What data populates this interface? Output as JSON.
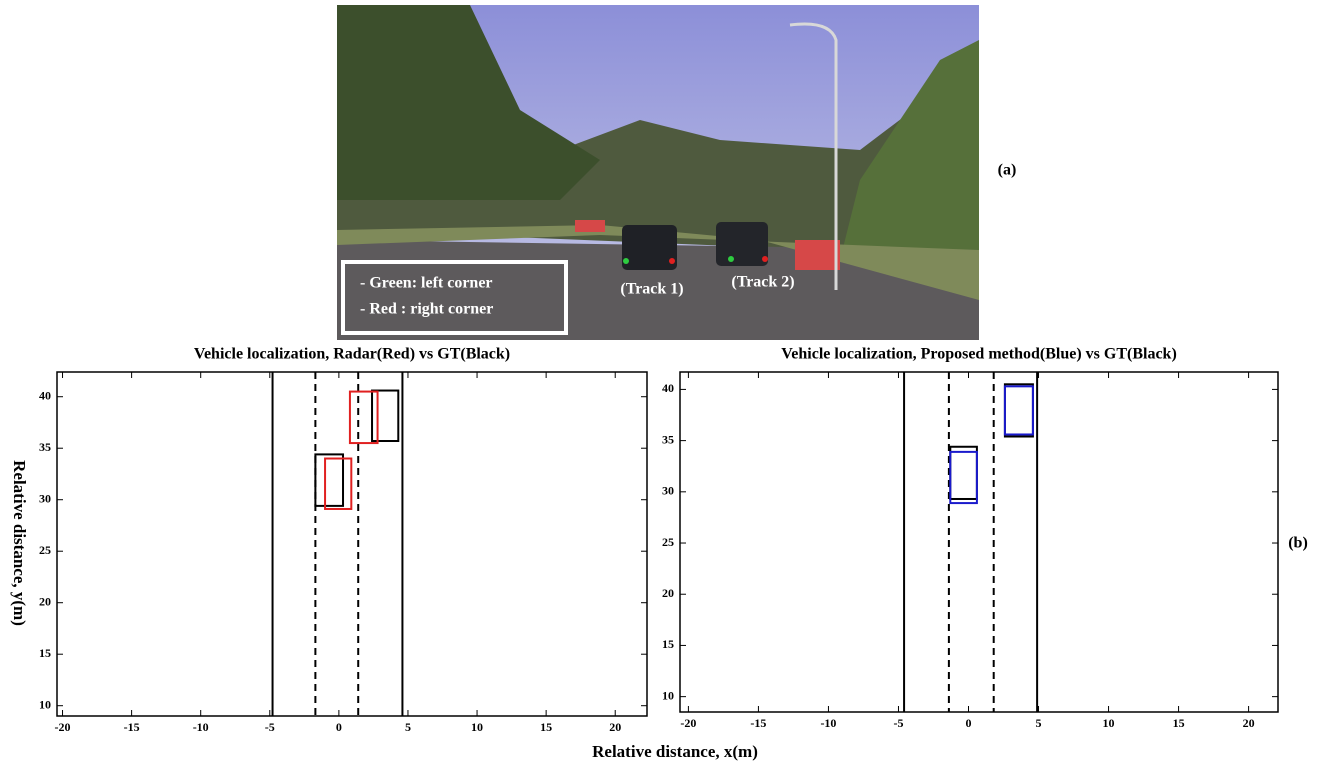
{
  "photo": {
    "legend": [
      "- Green: left corner",
      "- Red : right corner"
    ],
    "tracks": [
      "(Track 1)",
      "(Track 2)"
    ],
    "label": "(a)"
  },
  "panel_b_label": "(b)",
  "xlabel": "Relative distance, x(m)",
  "ylabel": "Relative distance, y(m)",
  "chart_data": [
    {
      "type": "rect",
      "title": "Vehicle localization, Radar(Red) vs GT(Black)",
      "xlim": [
        -20.4,
        22.3
      ],
      "ylim": [
        9,
        42.4
      ],
      "xticks": [
        -20,
        -15,
        -10,
        -5,
        0,
        5,
        10,
        15,
        20
      ],
      "yticks": [
        10,
        15,
        20,
        25,
        30,
        35,
        40
      ],
      "lane_lines": [
        {
          "x": -4.8,
          "dashed": false
        },
        {
          "x": -1.7,
          "dashed": true
        },
        {
          "x": 1.4,
          "dashed": true
        },
        {
          "x": 4.6,
          "dashed": false
        }
      ],
      "series": [
        {
          "color": "#000000",
          "boxes": [
            {
              "x": [
                -1.7,
                0.3
              ],
              "y": [
                29.4,
                34.4
              ]
            },
            {
              "x": [
                2.4,
                4.3
              ],
              "y": [
                35.7,
                40.6
              ]
            }
          ]
        },
        {
          "color": "#e02020",
          "boxes": [
            {
              "x": [
                -1.0,
                0.9
              ],
              "y": [
                29.1,
                34.0
              ]
            },
            {
              "x": [
                0.8,
                2.8
              ],
              "y": [
                35.5,
                40.5
              ]
            }
          ]
        }
      ]
    },
    {
      "type": "rect",
      "title": "Vehicle localization, Proposed method(Blue) vs GT(Black)",
      "xlim": [
        -20.6,
        22.1
      ],
      "ylim": [
        8.5,
        41.7
      ],
      "xticks": [
        -20,
        -15,
        -10,
        -5,
        0,
        5,
        10,
        15,
        20
      ],
      "yticks": [
        10,
        15,
        20,
        25,
        30,
        35,
        40
      ],
      "lane_lines": [
        {
          "x": -4.6,
          "dashed": false
        },
        {
          "x": -1.4,
          "dashed": true
        },
        {
          "x": 1.8,
          "dashed": true
        },
        {
          "x": 4.9,
          "dashed": false
        }
      ],
      "series": [
        {
          "color": "#000000",
          "boxes": [
            {
              "x": [
                -1.3,
                0.6
              ],
              "y": [
                29.3,
                34.4
              ]
            },
            {
              "x": [
                2.6,
                4.6
              ],
              "y": [
                35.4,
                40.5
              ]
            }
          ]
        },
        {
          "color": "#1a1acc",
          "boxes": [
            {
              "x": [
                -1.3,
                0.6
              ],
              "y": [
                28.9,
                33.9
              ]
            },
            {
              "x": [
                2.6,
                4.6
              ],
              "y": [
                35.6,
                40.3
              ]
            }
          ]
        }
      ]
    }
  ]
}
